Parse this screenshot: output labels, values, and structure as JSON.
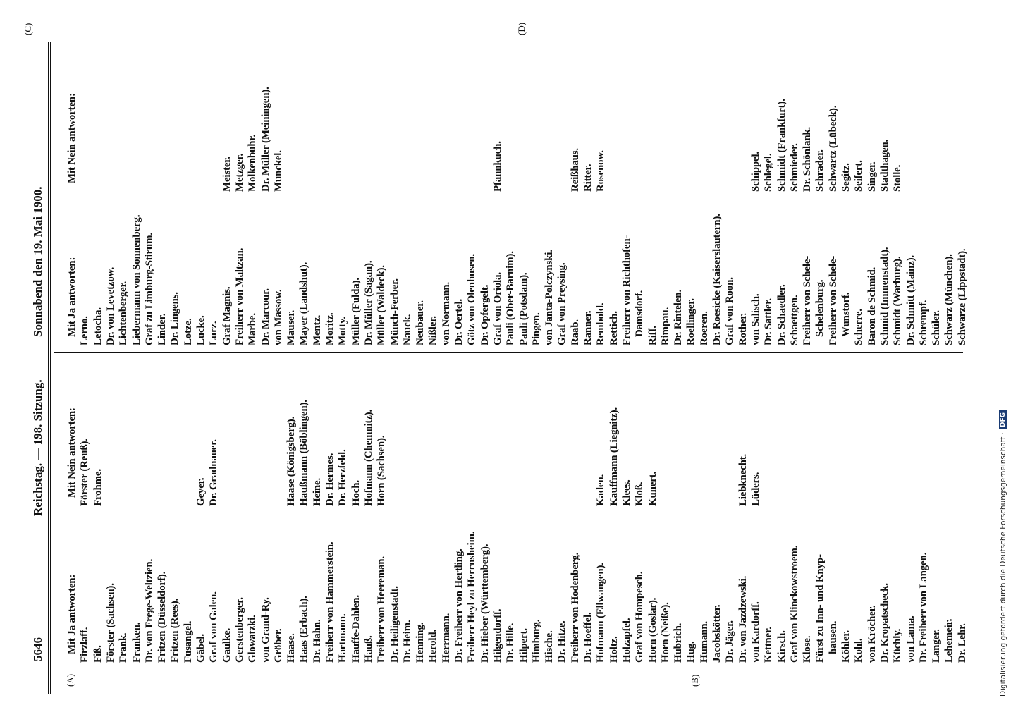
{
  "header": {
    "page_number": "5646",
    "session": "Reichstag. — 198. Sitzung.",
    "date": "Sonnabend den 19. Mai 1900."
  },
  "margin_marks": [
    "(A)",
    "(B)",
    "(C)",
    "(D)"
  ],
  "left_half": {
    "rows": [
      [
        "Mit Ja antworten:",
        "Mit Nein antworten:"
      ],
      [
        "Firzlaff.",
        "Förster (Reuß)."
      ],
      [
        "Fiß.",
        "Frohme."
      ],
      [
        "Förster (Sachsen).",
        null
      ],
      [
        "Frank.",
        null
      ],
      [
        "Franken.",
        null
      ],
      [
        "Dr. von Frege-Weltzien.",
        null
      ],
      [
        "Fritzen (Düsseldorf).",
        null
      ],
      [
        "Fritzen (Rees).",
        null
      ],
      [
        "Fusangel.",
        null
      ],
      [
        "Gäbel.",
        "Geyer."
      ],
      [
        "Graf von Galen.",
        "Dr. Gradnauer."
      ],
      [
        "Gaulke.",
        null
      ],
      [
        "Gerstenberger.",
        null
      ],
      [
        "Glowatzki.",
        null
      ],
      [
        "von Grand-Ry.",
        null
      ],
      [
        "Gröber.",
        null
      ],
      [
        "Haase.",
        "Haase (Königsberg)."
      ],
      [
        "Haas (Erbach).",
        "Haußmann (Böblingen)."
      ],
      [
        "Dr. Hahn.",
        "Heine."
      ],
      [
        "Freiherr von Hammerstein.",
        "Dr. Hermes."
      ],
      [
        "Hartmann.",
        "Dr. Herzfeld."
      ],
      [
        "Hauffe-Dahlen.",
        "Hoch."
      ],
      [
        "Hauß.",
        "Hofmann (Chemnitz)."
      ],
      [
        "Freiherr von Heereman.",
        "Horn (Sachsen)."
      ],
      [
        "Dr. Heiligenstadt.",
        null
      ],
      [
        "Dr. Heim.",
        null
      ],
      [
        "Henning.",
        null
      ],
      [
        "Herold.",
        null
      ],
      [
        "Herrmann.",
        null
      ],
      [
        "Dr. Freiherr von Hertling.",
        null
      ],
      [
        "Freiherr Heyl zu Herrnsheim.",
        null
      ],
      [
        "Dr. Hieber (Württemberg).",
        null
      ],
      [
        "Hilgendorff.",
        null
      ],
      [
        "Dr. Hille.",
        null
      ],
      [
        "Hilpert.",
        null
      ],
      [
        "Himburg.",
        null
      ],
      [
        "Hische.",
        null
      ],
      [
        "Dr. Hitze.",
        null
      ],
      [
        "Freiherr von Hodenberg.",
        null
      ],
      [
        "Dr. Hoeffel.",
        null
      ],
      [
        "Hofmann (Ellwangen).",
        "Kaden."
      ],
      [
        "Holtz.",
        "Kauffmann (Liegnitz)."
      ],
      [
        "Holzapfel.",
        "Klees."
      ],
      [
        "Graf von Hompesch.",
        "Kloß."
      ],
      [
        "Horn (Goslar).",
        "Kunert."
      ],
      [
        "Horn (Neiße).",
        null
      ],
      [
        "Hubrich.",
        null
      ],
      [
        "Hug.",
        null
      ],
      [
        "Humann.",
        null
      ],
      [
        "Jacobskötter.",
        null
      ],
      [
        "Dr. Jäger.",
        null
      ],
      [
        "Dr. von Jazdzewski.",
        "Liebknecht."
      ],
      [
        "von Kardorff.",
        "Lüders."
      ],
      [
        "Kettner.",
        null
      ],
      [
        "Kirsch.",
        null
      ],
      [
        "Graf von Klinckowstroem.",
        null
      ],
      [
        "Klose.",
        null
      ],
      [
        "Fürst zu Inn- und Knyp-",
        null
      ],
      [
        "hausen.",
        null
      ],
      [
        "Köhler.",
        null
      ],
      [
        "Kohl.",
        null
      ],
      [
        "von Kröcher.",
        null
      ],
      [
        "Dr. Kropatscheck.",
        null
      ],
      [
        "Küchly.",
        null
      ],
      [
        "von Lama.",
        null
      ],
      [
        "Dr. Freiherr von Langen.",
        null
      ],
      [
        "Langer.",
        null
      ],
      [
        "Lehemeir.",
        null
      ],
      [
        "Dr. Lehr.",
        null
      ]
    ]
  },
  "right_half": {
    "rows": [
      [
        "Mit Ja antworten:",
        "Mit Nein antworten:"
      ],
      [
        "Lerno.",
        null
      ],
      [
        "Letocha.",
        null
      ],
      [
        "Dr. von Levetzow.",
        null
      ],
      [
        "Lichtenberger.",
        null
      ],
      [
        "Liebermann von Sonnenberg.",
        null
      ],
      [
        "Graf zu Limburg-Stirum.",
        null
      ],
      [
        "Linder.",
        null
      ],
      [
        "Dr. Lingens.",
        null
      ],
      [
        "Lotze.",
        null
      ],
      [
        "Lucke.",
        null
      ],
      [
        "Lurz.",
        null
      ],
      [
        "Graf Magnis.",
        "Meister."
      ],
      [
        "Freiherr von Maltzan.",
        "Metzger."
      ],
      [
        "Marbe.",
        "Molkenbuhr."
      ],
      [
        "Dr. Marcour.",
        "Dr. Müller (Meiningen)."
      ],
      [
        "von Massow.",
        "Munckel."
      ],
      [
        "Mauser.",
        null
      ],
      [
        "Mayer (Landshut).",
        null
      ],
      [
        "Mentz.",
        null
      ],
      [
        "Moritz.",
        null
      ],
      [
        "Motty.",
        null
      ],
      [
        "Müller (Fulda).",
        null
      ],
      [
        "Dr. Müller (Sagan).",
        null
      ],
      [
        "Müller (Waldeck).",
        null
      ],
      [
        "Münch-Ferber.",
        null
      ],
      [
        "Nauck.",
        null
      ],
      [
        "Neubauer.",
        null
      ],
      [
        "Nißler.",
        null
      ],
      [
        "von Normann.",
        null
      ],
      [
        "Dr. Oertel.",
        null
      ],
      [
        "Götz von Olenhusen.",
        null
      ],
      [
        "Dr. Opfergelt.",
        null
      ],
      [
        "Graf von Oriola.",
        "Pfannkuch."
      ],
      [
        "Pauli (Ober-Barnim).",
        null
      ],
      [
        "Pauli (Potsdam).",
        null
      ],
      [
        "Pingen.",
        null
      ],
      [
        "von Janta-Polczynski.",
        null
      ],
      [
        "Graf von Preysing.",
        null
      ],
      [
        "Raab.",
        "Reißhaus."
      ],
      [
        "Ranner.",
        "Ritter."
      ],
      [
        "Rembold.",
        "Rosenow."
      ],
      [
        "Rettich.",
        null
      ],
      [
        "Freiherr von Richthofen-",
        null
      ],
      [
        "Damsdorf.",
        null
      ],
      [
        "Riff.",
        null
      ],
      [
        "Rimpau.",
        null
      ],
      [
        "Dr. Rintelen.",
        null
      ],
      [
        "Roellinger.",
        null
      ],
      [
        "Roeren.",
        null
      ],
      [
        "Dr. Roesicke (Kaiserslautern).",
        null
      ],
      [
        "Graf von Roon.",
        null
      ],
      [
        "Rother.",
        null
      ],
      [
        "von Salisch.",
        "Schippel."
      ],
      [
        "Dr. Sattler.",
        "Schlegel."
      ],
      [
        "Dr. Schaedler.",
        "Schmidt (Frankfurt)."
      ],
      [
        "Schaettgen.",
        "Schmieder."
      ],
      [
        "Freiherr von Schele-",
        "Dr. Schönlank."
      ],
      [
        "Schelenburg.",
        "Schrader."
      ],
      [
        "Freiherr von Schele-",
        "Schwartz (Lübeck)."
      ],
      [
        "Wunstorf.",
        "Segitz."
      ],
      [
        "Scherre.",
        "Seifert."
      ],
      [
        "Baron de Schmid.",
        "Singer."
      ],
      [
        "Schmid (Immenstadt).",
        "Stadthagen."
      ],
      [
        "Schmidt (Warburg).",
        "Stolle."
      ],
      [
        "Dr. Schmitt (Mainz).",
        null
      ],
      [
        "Schrempf.",
        null
      ],
      [
        "Schüler.",
        null
      ],
      [
        "Schwarz (München).",
        null
      ],
      [
        "Schwarze (Lippstadt).",
        null
      ]
    ]
  },
  "footer": {
    "credit": "Digitalisierung gefördert durch die Deutsche Forschungsgemeinschaft ·",
    "logo": "DFG"
  }
}
